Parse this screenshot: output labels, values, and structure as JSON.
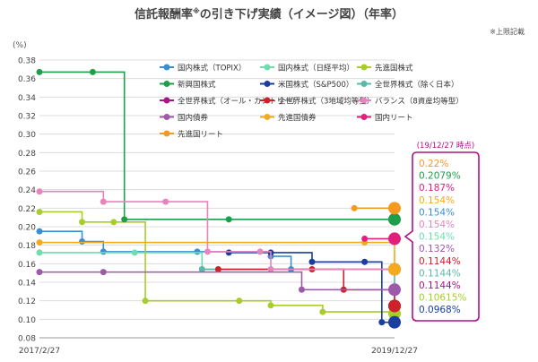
{
  "chart_data": {
    "type": "line",
    "title": "信託報酬率",
    "title_mark": "※",
    "title_suffix": "の引き下げ実績（イメージ図）（年率）",
    "note": "※上限記載",
    "ylabel": "(%)",
    "ylim": [
      0.08,
      0.38
    ],
    "yticks": [
      "0.38",
      "0.36",
      "0.34",
      "0.32",
      "0.30",
      "0.28",
      "0.26",
      "0.24",
      "0.22",
      "0.20",
      "0.18",
      "0.16",
      "0.14",
      "0.12",
      "0.10",
      "0.08"
    ],
    "xlim": [
      "2017-02-27",
      "2019-12-27"
    ],
    "x_tick_labels": [
      "2017/2/27",
      "2019/12/27"
    ],
    "grid": true,
    "legend_placement": "top",
    "callout_title": "(19/12/27 時点)",
    "series": [
      {
        "name": "国内株式（TOPIX）",
        "color": "#3a8fd0",
        "points": [
          [
            "2017-02-27",
            0.195
          ],
          [
            "2017-07-01",
            0.184
          ],
          [
            "2017-09-01",
            0.173
          ],
          [
            "2018-06-01",
            0.173
          ],
          [
            "2019-01-01",
            0.168
          ],
          [
            "2019-03-01",
            0.154
          ],
          [
            "2019-12-27",
            0.154
          ]
        ]
      },
      {
        "name": "国内株式（日経平均）",
        "color": "#6fdcb0",
        "points": [
          [
            "2017-02-27",
            0.172
          ],
          [
            "2017-12-01",
            0.172
          ],
          [
            "2018-06-15",
            0.154
          ],
          [
            "2019-12-27",
            0.154
          ]
        ]
      },
      {
        "name": "先進国株式",
        "color": "#a8cc2a",
        "points": [
          [
            "2017-02-27",
            0.216
          ],
          [
            "2017-07-01",
            0.205
          ],
          [
            "2017-10-01",
            0.205
          ],
          [
            "2018-01-01",
            0.12
          ],
          [
            "2018-10-01",
            0.12
          ],
          [
            "2019-01-01",
            0.115
          ],
          [
            "2019-06-01",
            0.108
          ],
          [
            "2019-12-27",
            0.10615
          ]
        ]
      },
      {
        "name": "新興国株式",
        "color": "#1e9e4a",
        "points": [
          [
            "2017-02-27",
            0.367
          ],
          [
            "2017-08-01",
            0.367
          ],
          [
            "2017-11-01",
            0.2079
          ],
          [
            "2018-09-01",
            0.2079
          ],
          [
            "2019-12-27",
            0.2079
          ]
        ]
      },
      {
        "name": "米国株式（S&P500）",
        "color": "#1a3ea0",
        "points": [
          [
            "2018-09-01",
            0.172
          ],
          [
            "2019-01-01",
            0.172
          ],
          [
            "2019-05-01",
            0.162
          ],
          [
            "2019-10-01",
            0.162
          ],
          [
            "2019-11-20",
            0.0968
          ],
          [
            "2019-12-27",
            0.0968
          ]
        ]
      },
      {
        "name": "全世界株式（除く日本）",
        "color": "#5ab8a8",
        "points": [
          [
            "2018-06-15",
            0.154
          ],
          [
            "2019-12-27",
            0.1144
          ]
        ]
      },
      {
        "name": "全世界株式（オール・カントリー）",
        "color": "#b01088",
        "points": [
          [
            "2019-12-27",
            0.1144
          ]
        ]
      },
      {
        "name": "全世界株式（3地域均等型）",
        "color": "#d0202a",
        "points": [
          [
            "2018-08-01",
            0.154
          ],
          [
            "2019-05-01",
            0.154
          ],
          [
            "2019-08-01",
            0.132
          ],
          [
            "2019-12-27",
            0.1144
          ]
        ]
      },
      {
        "name": "バランス（8資産均等型）",
        "color": "#e884bc",
        "points": [
          [
            "2017-02-27",
            0.238
          ],
          [
            "2017-09-01",
            0.227
          ],
          [
            "2018-03-01",
            0.227
          ],
          [
            "2018-07-01",
            0.173
          ],
          [
            "2018-12-01",
            0.173
          ],
          [
            "2019-01-01",
            0.154
          ],
          [
            "2019-12-27",
            0.154
          ]
        ]
      },
      {
        "name": "国内債券",
        "color": "#9c5aa8",
        "points": [
          [
            "2017-02-27",
            0.151
          ],
          [
            "2017-09-01",
            0.151
          ],
          [
            "2019-04-01",
            0.132
          ],
          [
            "2019-12-27",
            0.132
          ]
        ]
      },
      {
        "name": "先進国債券",
        "color": "#f3aa1c",
        "points": [
          [
            "2017-02-27",
            0.183
          ],
          [
            "2019-10-01",
            0.183
          ],
          [
            "2019-12-27",
            0.154
          ]
        ]
      },
      {
        "name": "国内リート",
        "color": "#e0207c",
        "points": [
          [
            "2019-10-01",
            0.187
          ],
          [
            "2019-12-27",
            0.187
          ]
        ]
      },
      {
        "name": "先進国リート",
        "color": "#f59a1e",
        "points": [
          [
            "2019-09-01",
            0.22
          ],
          [
            "2019-12-27",
            0.22
          ]
        ]
      }
    ],
    "callout_values": [
      {
        "text": "0.22%",
        "color": "#f59a1e"
      },
      {
        "text": "0.2079%",
        "color": "#1e9e4a"
      },
      {
        "text": "0.187%",
        "color": "#e0207c"
      },
      {
        "text": "0.154%",
        "color": "#f3aa1c"
      },
      {
        "text": "0.154%",
        "color": "#3a8fd0"
      },
      {
        "text": "0.154%",
        "color": "#e884bc"
      },
      {
        "text": "0.154%",
        "color": "#6fdcb0"
      },
      {
        "text": "0.132%",
        "color": "#9c5aa8"
      },
      {
        "text": "0.1144%",
        "color": "#d0202a"
      },
      {
        "text": "0.1144%",
        "color": "#5ab8a8"
      },
      {
        "text": "0.1144%",
        "color": "#b01088"
      },
      {
        "text": "0.10615%",
        "color": "#a8cc2a"
      },
      {
        "text": "0.0968%",
        "color": "#1a3ea0"
      }
    ]
  }
}
